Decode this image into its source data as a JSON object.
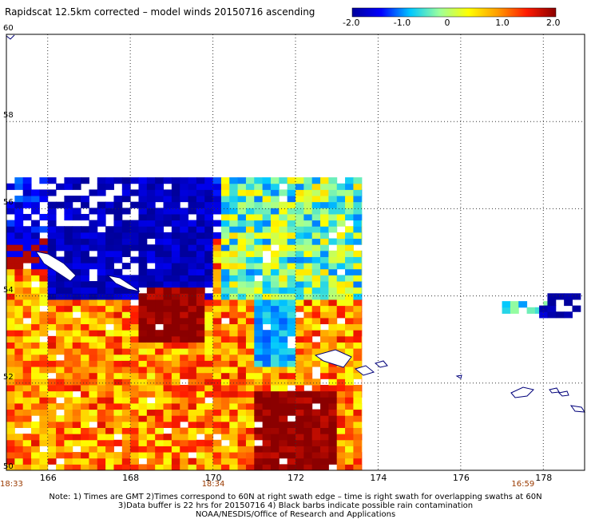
{
  "title": "Rapidscat 12.5km corrected – model winds 20150716 ascending",
  "colorbar": {
    "labels": [
      "-2.0",
      "-1.0",
      "0",
      "1.0",
      "2.0"
    ],
    "colors": [
      "#00009c",
      "#0000ff",
      "#00c8ff",
      "#9cff9c",
      "#ffff00",
      "#ff9c00",
      "#ff1a00",
      "#8b0000"
    ]
  },
  "map": {
    "lat_labels": [
      "60",
      "58",
      "56",
      "54",
      "52",
      "50"
    ],
    "lon_labels": [
      "166",
      "168",
      "170",
      "172",
      "174",
      "176",
      "178"
    ],
    "time_labels": [
      "18:33",
      "18:34",
      "16:59"
    ]
  },
  "notes": [
    "Note: 1) Times are GMT 2)Times correspond to 60N at right swath edge – time is right swath for overlapping swaths at 60N",
    "3)Data buffer is 22 hrs for 20150716 4) Black barbs indicate possible rain contamination",
    "NOAA/NESDIS/Office of Research and Applications"
  ],
  "chart_data": {
    "type": "heatmap",
    "title": "Rapidscat 12.5km corrected – model winds 20150716 ascending",
    "value_range": [
      -2.0,
      2.0
    ],
    "xlim": [
      165,
      179
    ],
    "ylim": [
      50,
      60
    ],
    "x_ticks": [
      166,
      168,
      170,
      172,
      174,
      176,
      178
    ],
    "y_ticks": [
      50,
      52,
      54,
      56,
      58,
      60
    ],
    "grid": true,
    "main_swath": {
      "lon": [
        165,
        173.6
      ],
      "lat": [
        50,
        56.6
      ]
    },
    "east_patches": [
      {
        "lon": [
          177.0,
          178.0
        ],
        "lat": [
          53.6,
          53.85
        ],
        "mean_value": -0.7
      },
      {
        "lon": [
          177.9,
          178.8
        ],
        "lat": [
          53.5,
          53.95
        ],
        "mean_value": -1.9
      }
    ],
    "notable_regions": [
      {
        "name": "strong negative",
        "lon": [
          165.8,
          169.8
        ],
        "lat": [
          53.8,
          56.6
        ],
        "mean_value": -1.8
      },
      {
        "name": "strong positive",
        "lon": [
          170.8,
          172.8
        ],
        "lat": [
          50,
          51.8
        ],
        "mean_value": 2.0
      },
      {
        "name": "strong positive",
        "lon": [
          168.0,
          169.6
        ],
        "lat": [
          52.9,
          54.2
        ],
        "mean_value": 2.0
      },
      {
        "name": "negative pocket",
        "lon": [
          170.9,
          171.9
        ],
        "lat": [
          52.3,
          53.8
        ],
        "mean_value": -0.9
      }
    ]
  }
}
